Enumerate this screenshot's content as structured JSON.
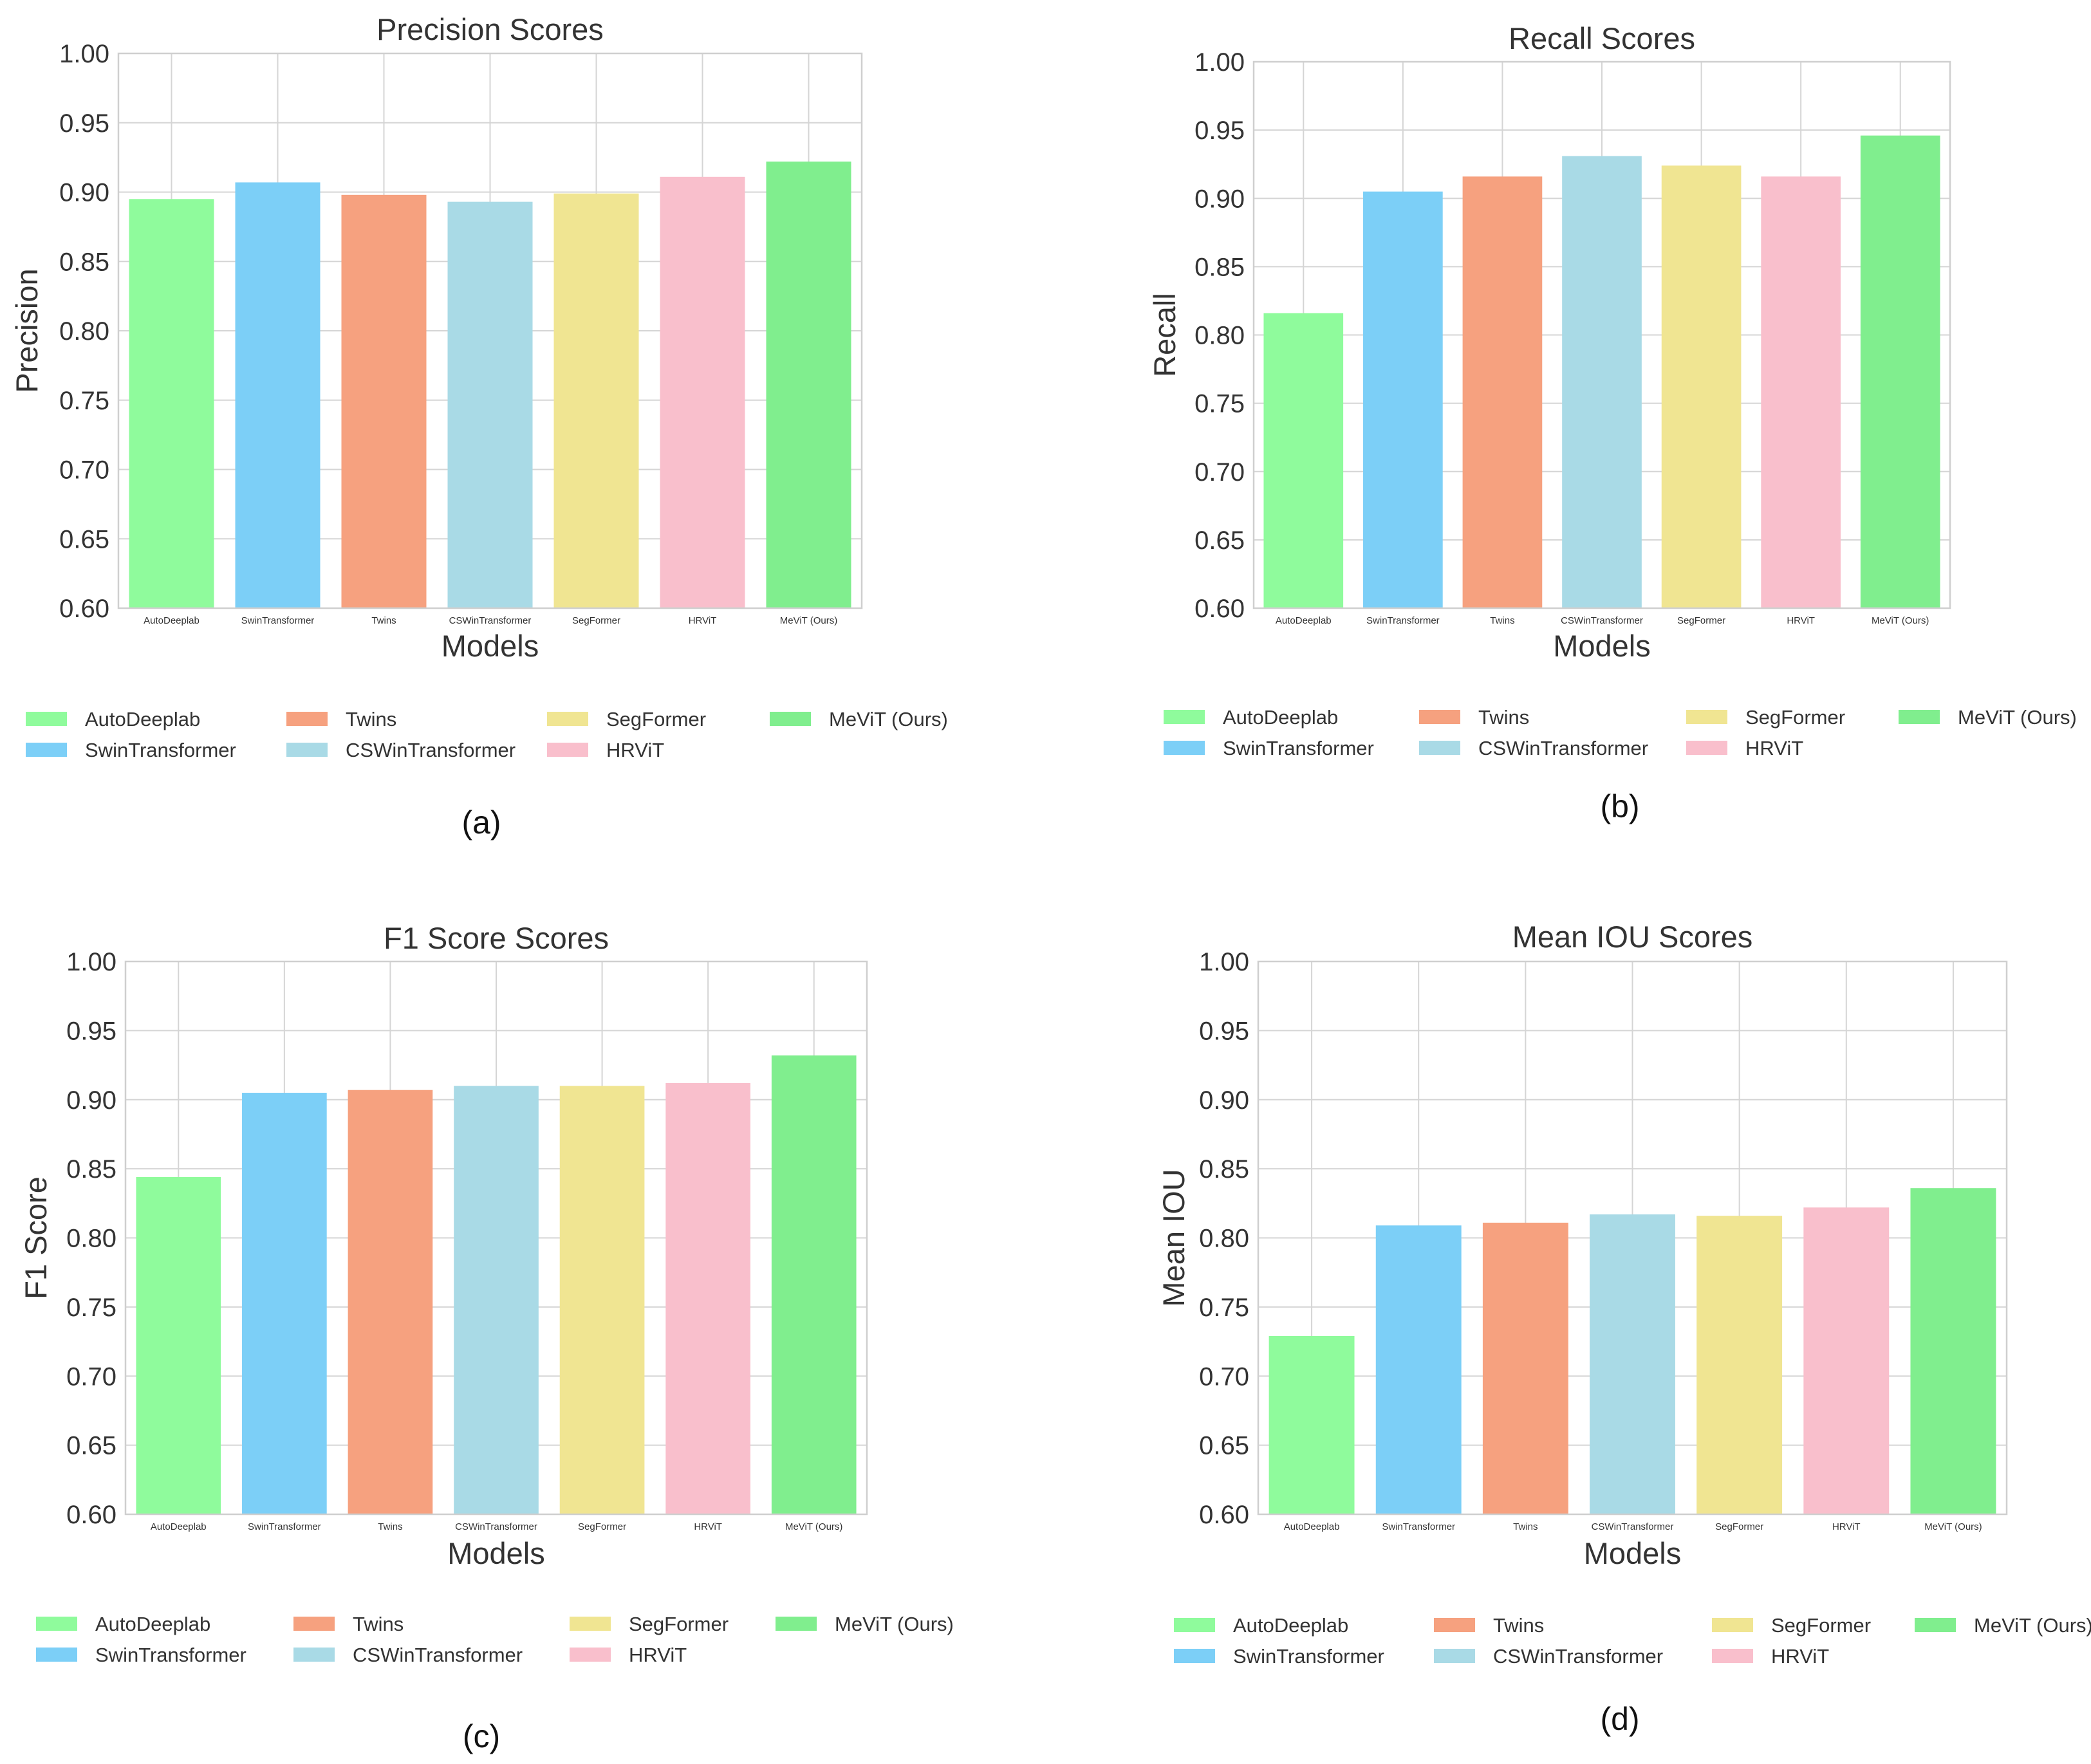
{
  "colors": {
    "AutoDeeplab": "#8ffb9c",
    "SwinTransformer": "#7ccff7",
    "Twins": "#f6a17f",
    "CSWinTransformer": "#a9dae6",
    "SegFormer": "#f0e592",
    "HRViT": "#f9bfcc",
    "MeViT (Ours)": "#80ee8e"
  },
  "chart_data": [
    {
      "type": "bar",
      "title": "Precision Scores",
      "xlabel": "Models",
      "ylabel": "Precision",
      "ylim": [
        0.6,
        1.0
      ],
      "yticks": [
        "0.60",
        "0.65",
        "0.70",
        "0.75",
        "0.80",
        "0.85",
        "0.90",
        "0.95",
        "1.00"
      ],
      "categories": [
        "AutoDeeplab",
        "SwinTransformer",
        "Twins",
        "CSWinTransformer",
        "SegFormer",
        "HRViT",
        "MeViT (Ours)"
      ],
      "values": [
        0.895,
        0.907,
        0.898,
        0.893,
        0.899,
        0.911,
        0.922
      ],
      "legend": [
        "AutoDeeplab",
        "Twins",
        "SegFormer",
        "MeViT (Ours)",
        "SwinTransformer",
        "CSWinTransformer",
        "HRViT"
      ],
      "caption": "(a)"
    },
    {
      "type": "bar",
      "title": "Recall Scores",
      "xlabel": "Models",
      "ylabel": "Recall",
      "ylim": [
        0.6,
        1.0
      ],
      "yticks": [
        "0.60",
        "0.65",
        "0.70",
        "0.75",
        "0.80",
        "0.85",
        "0.90",
        "0.95",
        "1.00"
      ],
      "categories": [
        "AutoDeeplab",
        "SwinTransformer",
        "Twins",
        "CSWinTransformer",
        "SegFormer",
        "HRViT",
        "MeViT (Ours)"
      ],
      "values": [
        0.816,
        0.905,
        0.916,
        0.931,
        0.924,
        0.916,
        0.946
      ],
      "legend": [
        "AutoDeeplab",
        "Twins",
        "SegFormer",
        "MeViT (Ours)",
        "SwinTransformer",
        "CSWinTransformer",
        "HRViT"
      ],
      "caption": "(b)"
    },
    {
      "type": "bar",
      "title": "F1 Score Scores",
      "xlabel": "Models",
      "ylabel": "F1 Score",
      "ylim": [
        0.6,
        1.0
      ],
      "yticks": [
        "0.60",
        "0.65",
        "0.70",
        "0.75",
        "0.80",
        "0.85",
        "0.90",
        "0.95",
        "1.00"
      ],
      "categories": [
        "AutoDeeplab",
        "SwinTransformer",
        "Twins",
        "CSWinTransformer",
        "SegFormer",
        "HRViT",
        "MeViT (Ours)"
      ],
      "values": [
        0.844,
        0.905,
        0.907,
        0.91,
        0.91,
        0.912,
        0.932
      ],
      "legend": [
        "AutoDeeplab",
        "Twins",
        "SegFormer",
        "MeViT (Ours)",
        "SwinTransformer",
        "CSWinTransformer",
        "HRViT"
      ],
      "caption": "(c)"
    },
    {
      "type": "bar",
      "title": "Mean IOU Scores",
      "xlabel": "Models",
      "ylabel": "Mean IOU",
      "ylim": [
        0.6,
        1.0
      ],
      "yticks": [
        "0.60",
        "0.65",
        "0.70",
        "0.75",
        "0.80",
        "0.85",
        "0.90",
        "0.95",
        "1.00"
      ],
      "categories": [
        "AutoDeeplab",
        "SwinTransformer",
        "Twins",
        "CSWinTransformer",
        "SegFormer",
        "HRViT",
        "MeViT (Ours)"
      ],
      "values": [
        0.729,
        0.809,
        0.811,
        0.817,
        0.816,
        0.822,
        0.836
      ],
      "legend": [
        "AutoDeeplab",
        "Twins",
        "SegFormer",
        "MeViT (Ours)",
        "SwinTransformer",
        "CSWinTransformer",
        "HRViT"
      ],
      "caption": "(d)"
    }
  ]
}
